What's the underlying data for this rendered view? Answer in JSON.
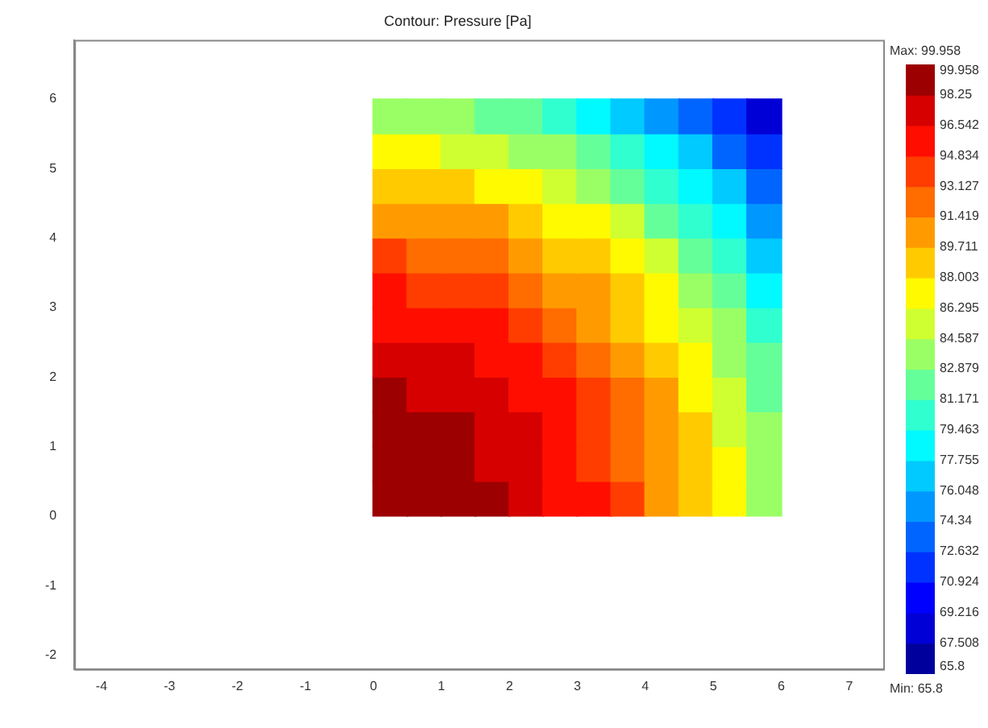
{
  "chart_data": {
    "type": "scatter",
    "title": "Contour: Pressure [Pa]",
    "marker": "square",
    "x": [
      0.25,
      0.75,
      1.25,
      1.75,
      2.25,
      2.75,
      3.25,
      3.75,
      4.25,
      4.75,
      5.25,
      5.75,
      0.25,
      0.75,
      1.25,
      1.75,
      2.25,
      2.75,
      3.25,
      3.75,
      4.25,
      4.75,
      5.25,
      5.75,
      0.25,
      0.75,
      1.25,
      1.75,
      2.25,
      2.75,
      3.25,
      3.75,
      4.25,
      4.75,
      5.25,
      5.75,
      0.25,
      0.75,
      1.25,
      1.75,
      2.25,
      2.75,
      3.25,
      3.75,
      4.25,
      4.75,
      5.25,
      5.75,
      0.25,
      0.75,
      1.25,
      1.75,
      2.25,
      2.75,
      3.25,
      3.75,
      4.25,
      4.75,
      5.25,
      5.75,
      0.25,
      0.75,
      1.25,
      1.75,
      2.25,
      2.75,
      3.25,
      3.75,
      4.25,
      4.75,
      5.25,
      5.75,
      0.25,
      0.75,
      1.25,
      1.75,
      2.25,
      2.75,
      3.25,
      3.75,
      4.25,
      4.75,
      5.25,
      5.75,
      0.25,
      0.75,
      1.25,
      1.75,
      2.25,
      2.75,
      3.25,
      3.75,
      4.25,
      4.75,
      5.25,
      5.75,
      0.25,
      0.75,
      1.25,
      1.75,
      2.25,
      2.75,
      3.25,
      3.75,
      4.25,
      4.75,
      5.25,
      5.75,
      0.25,
      0.75,
      1.25,
      1.75,
      2.25,
      2.75,
      3.25,
      3.75,
      4.25,
      4.75,
      5.25,
      5.75,
      0.25,
      0.75,
      1.25,
      1.75,
      2.25,
      2.75,
      3.25,
      3.75,
      4.25,
      4.75,
      5.25,
      5.75,
      0.25,
      0.75,
      1.25,
      1.75,
      2.25,
      2.75,
      3.25,
      3.75,
      4.25,
      4.75,
      5.25,
      5.75
    ],
    "values": [
      0.25,
      0.25,
      0.25,
      0.25,
      0.25,
      0.25,
      0.25,
      0.25,
      0.25,
      0.25,
      0.25,
      0.25,
      0.75,
      0.75,
      0.75,
      0.75,
      0.75,
      0.75,
      0.75,
      0.75,
      0.75,
      0.75,
      0.75,
      0.75,
      1.25,
      1.25,
      1.25,
      1.25,
      1.25,
      1.25,
      1.25,
      1.25,
      1.25,
      1.25,
      1.25,
      1.25,
      1.75,
      1.75,
      1.75,
      1.75,
      1.75,
      1.75,
      1.75,
      1.75,
      1.75,
      1.75,
      1.75,
      1.75,
      2.25,
      2.25,
      2.25,
      2.25,
      2.25,
      2.25,
      2.25,
      2.25,
      2.25,
      2.25,
      2.25,
      2.25,
      2.75,
      2.75,
      2.75,
      2.75,
      2.75,
      2.75,
      2.75,
      2.75,
      2.75,
      2.75,
      2.75,
      2.75,
      3.25,
      3.25,
      3.25,
      3.25,
      3.25,
      3.25,
      3.25,
      3.25,
      3.25,
      3.25,
      3.25,
      3.25,
      3.75,
      3.75,
      3.75,
      3.75,
      3.75,
      3.75,
      3.75,
      3.75,
      3.75,
      3.75,
      3.75,
      3.75,
      4.25,
      4.25,
      4.25,
      4.25,
      4.25,
      4.25,
      4.25,
      4.25,
      4.25,
      4.25,
      4.25,
      4.25,
      4.75,
      4.75,
      4.75,
      4.75,
      4.75,
      4.75,
      4.75,
      4.75,
      4.75,
      4.75,
      4.75,
      4.75,
      5.25,
      5.25,
      5.25,
      5.25,
      5.25,
      5.25,
      5.25,
      5.25,
      5.25,
      5.25,
      5.25,
      5.25,
      5.75,
      5.75,
      5.75,
      5.75,
      5.75,
      5.75,
      5.75,
      5.75,
      5.75,
      5.75,
      5.75,
      5.75
    ],
    "cvalues": [
      99.9,
      99.7,
      99.2,
      98.5,
      97.5,
      96.4,
      94.9,
      93.3,
      91.4,
      89.2,
      86.9,
      84.3,
      99.7,
      99.4,
      99.0,
      98.2,
      97.3,
      96.1,
      94.7,
      93.0,
      91.1,
      89.0,
      86.6,
      84.0,
      99.2,
      99.0,
      98.5,
      97.8,
      96.8,
      95.6,
      94.2,
      92.6,
      90.7,
      88.5,
      86.2,
      83.6,
      98.5,
      98.2,
      97.8,
      97.1,
      96.1,
      94.9,
      93.5,
      91.8,
      89.9,
      87.8,
      85.5,
      82.8,
      97.5,
      97.3,
      96.8,
      96.1,
      95.2,
      94.0,
      92.6,
      90.9,
      89.0,
      86.9,
      84.5,
      81.9,
      96.4,
      96.1,
      95.6,
      94.9,
      94.0,
      92.8,
      91.4,
      89.7,
      87.8,
      85.7,
      83.3,
      80.7,
      94.9,
      94.7,
      94.2,
      93.5,
      92.6,
      91.4,
      89.9,
      88.3,
      86.4,
      84.3,
      81.9,
      79.3,
      93.3,
      93.0,
      92.6,
      91.8,
      90.9,
      89.7,
      88.3,
      86.6,
      84.7,
      82.6,
      80.2,
      77.6,
      91.4,
      91.1,
      90.7,
      89.9,
      89.0,
      87.8,
      86.4,
      84.7,
      82.8,
      80.7,
      78.3,
      75.7,
      89.2,
      89.0,
      88.5,
      87.8,
      86.9,
      85.7,
      84.3,
      82.6,
      80.7,
      78.6,
      76.2,
      73.6,
      86.9,
      86.6,
      86.2,
      85.5,
      84.5,
      83.3,
      81.9,
      80.2,
      78.3,
      76.2,
      73.8,
      71.2,
      84.3,
      84.0,
      83.6,
      82.8,
      81.9,
      80.7,
      79.3,
      77.6,
      75.7,
      73.6,
      71.2,
      68.6
    ],
    "clim": [
      65.8,
      99.958
    ],
    "cticks": [
      99.958,
      98.25,
      96.542,
      94.834,
      93.127,
      91.419,
      89.711,
      88.003,
      86.295,
      84.587,
      82.879,
      81.171,
      79.463,
      77.755,
      76.048,
      74.34,
      72.632,
      70.924,
      69.216,
      67.508,
      65.8
    ],
    "xlim": [
      -4.4,
      7.5
    ],
    "xticks": [
      -4,
      -3,
      -2,
      -1,
      0,
      1,
      2,
      3,
      4,
      5,
      6,
      7
    ],
    "ylim": [
      -2.2,
      6.85
    ],
    "yticks": [
      -2,
      -1,
      0,
      1,
      2,
      3,
      4,
      5,
      6
    ],
    "grid": false,
    "legend": false,
    "annotations": [
      "Max: 99.958",
      "Min: 65.8"
    ]
  }
}
